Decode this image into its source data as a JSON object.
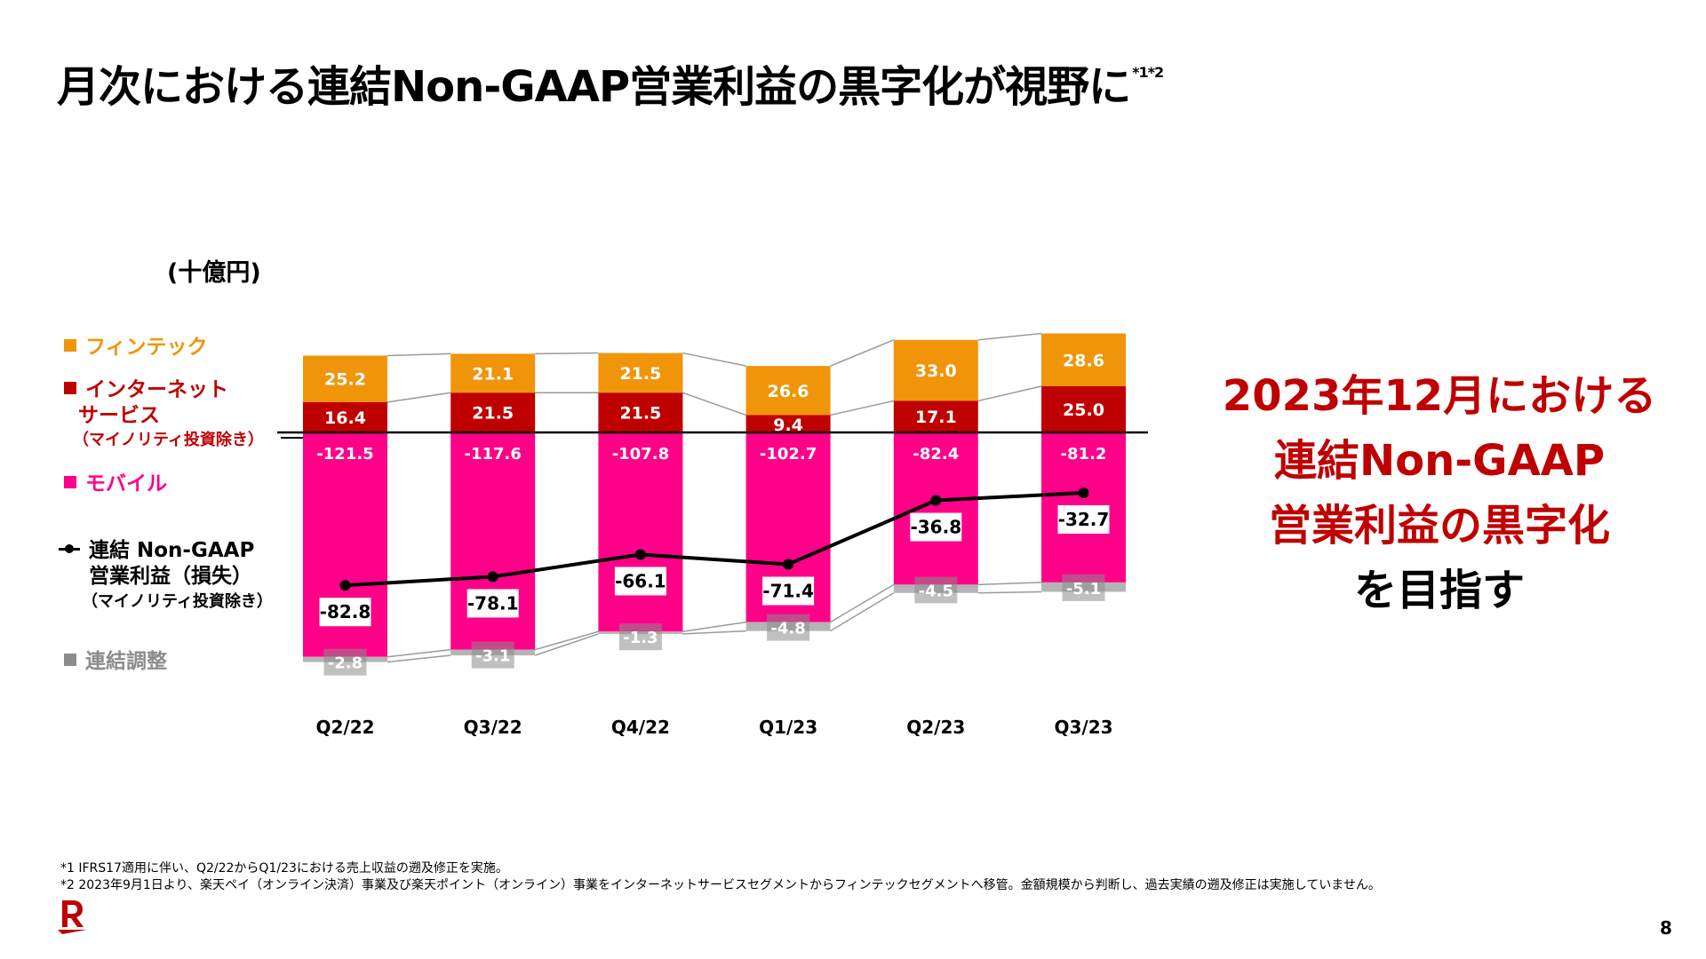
{
  "title": {
    "text": "月次における連結Non-GAAP営業利益の黒字化が視野に",
    "footnote_marks": "*1*2"
  },
  "unit_label": "(十億円)",
  "legend": {
    "fintech": "フィンテック",
    "internet_line1": "インターネット",
    "internet_line2": "サービス",
    "internet_sub": "（マイノリティ投資除き）",
    "mobile": "モバイル",
    "line_line1": "連結 Non-GAAP",
    "line_line2": "営業利益（損失）",
    "line_sub": "（マイノリティ投資除き）",
    "adjustment": "連結調整"
  },
  "colors": {
    "fintech": "#f0950a",
    "internet": "#bf0000",
    "mobile": "#ff0088",
    "adjustment": "#b4b4b4",
    "line": "#000000",
    "accent_red": "#bf0000"
  },
  "chart_data": {
    "type": "bar",
    "stacked": true,
    "title": "月次における連結Non-GAAP営業利益の黒字化が視野に",
    "xlabel": "",
    "ylabel": "(十億円)",
    "categories": [
      "Q2/22",
      "Q3/22",
      "Q4/22",
      "Q1/23",
      "Q2/23",
      "Q3/23"
    ],
    "series": [
      {
        "name": "フィンテック",
        "key": "fintech",
        "type": "bar",
        "values": [
          25.2,
          21.1,
          21.5,
          26.6,
          33.0,
          28.6
        ]
      },
      {
        "name": "インターネットサービス（マイノリティ投資除き）",
        "key": "internet",
        "type": "bar",
        "values": [
          16.4,
          21.5,
          21.5,
          9.4,
          17.1,
          25.0
        ]
      },
      {
        "name": "モバイル",
        "key": "mobile",
        "type": "bar",
        "values": [
          -121.5,
          -117.6,
          -107.8,
          -102.7,
          -82.4,
          -81.2
        ]
      },
      {
        "name": "連結調整",
        "key": "adjustment",
        "type": "bar",
        "values": [
          -2.8,
          -3.1,
          -1.3,
          -4.8,
          -4.5,
          -5.1
        ]
      },
      {
        "name": "連結 Non-GAAP 営業利益（損失）（マイノリティ投資除き）",
        "key": "line",
        "type": "line",
        "values": [
          -82.8,
          -78.1,
          -66.1,
          -71.4,
          -36.8,
          -32.7
        ]
      }
    ],
    "labels": {
      "fintech": [
        "25.2",
        "21.1",
        "21.5",
        "26.6",
        "33.0",
        "28.6"
      ],
      "internet": [
        "16.4",
        "21.5",
        "21.5",
        "9.4",
        "17.1",
        "25.0"
      ],
      "mobile": [
        "-121.5",
        "-117.6",
        "-107.8",
        "-102.7",
        "-82.4",
        "-81.2"
      ],
      "adjustment": [
        "-2.8",
        "-3.1",
        "-1.3",
        "-4.8",
        "-4.5",
        "-5.1"
      ],
      "line": [
        "-82.8",
        "-78.1",
        "-66.1",
        "-71.4",
        "-36.8",
        "-32.7"
      ]
    },
    "ylim": [
      -130,
      55
    ],
    "grid": false,
    "legend_position": "left"
  },
  "callout": {
    "line1": "2023年12月における",
    "line2": "連結Non-GAAP",
    "line3": "営業利益の黒字化",
    "line4": "を目指す"
  },
  "footnotes": [
    "*1 IFRS17適用に伴い、Q2/22からQ1/23における売上収益の遡及修正を実施。",
    "*2 2023年9月1日より、楽天ペイ（オンライン決済）事業及び楽天ポイント（オンライン）事業をインターネットサービスセグメントからフィンテックセグメントへ移管。金額規模から判断し、過去実績の遡及修正は実施していません。"
  ],
  "page_number": "8"
}
